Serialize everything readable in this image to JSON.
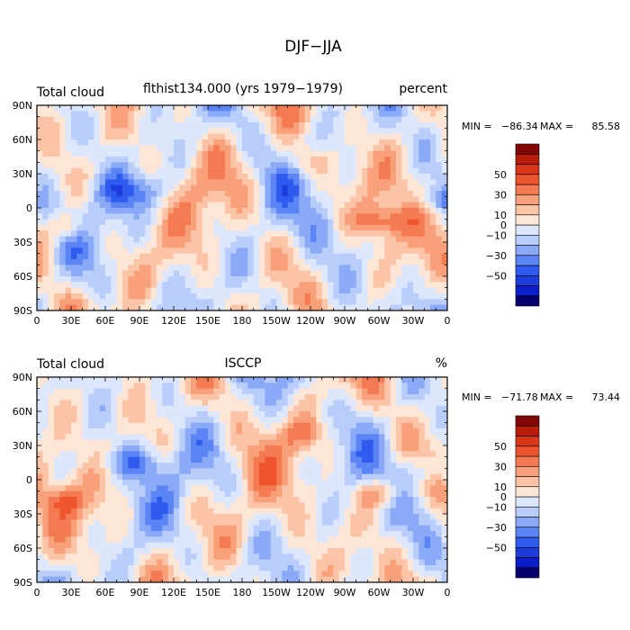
{
  "figure": {
    "title": "DJF−JJA"
  },
  "colorbar": {
    "colors": [
      "#04006e",
      "#0c1ec8",
      "#1c3cdc",
      "#2f5bef",
      "#5b84f4",
      "#8aa9f7",
      "#b9cdfb",
      "#dce7fd",
      "#fde6d5",
      "#fbc4a6",
      "#f8a07a",
      "#f47a52",
      "#ee552f",
      "#dc3619",
      "#b81d0c",
      "#810805"
    ],
    "tick_labels": [
      "50",
      "30",
      "10",
      "0",
      "−10",
      "−30",
      "−50"
    ]
  },
  "axes": {
    "x_tick_labels": [
      "0",
      "30E",
      "60E",
      "90E",
      "120E",
      "150E",
      "180",
      "150W",
      "120W",
      "90W",
      "60W",
      "30W",
      "0"
    ],
    "y_tick_labels": [
      "90N",
      "60N",
      "30N",
      "0",
      "30S",
      "60S",
      "90S"
    ]
  },
  "chart_data": [
    {
      "type": "heatmap",
      "title_left": "Total cloud",
      "title_center": "flthist134.000 (yrs 1979−1979)",
      "title_right": "percent",
      "stats": {
        "min_label": "MIN =",
        "min": "−86.34",
        "max_label": "MAX =",
        "max": "85.58"
      },
      "x_range": [
        0,
        360
      ],
      "y_range": [
        -90,
        90
      ]
    },
    {
      "type": "heatmap",
      "title_left": "Total cloud",
      "title_center": "ISCCP",
      "title_right": "%",
      "stats": {
        "min_label": "MIN =",
        "min": "−71.78",
        "max_label": "MAX =",
        "max": "73.44"
      },
      "x_range": [
        0,
        360
      ],
      "y_range": [
        -90,
        90
      ]
    }
  ]
}
